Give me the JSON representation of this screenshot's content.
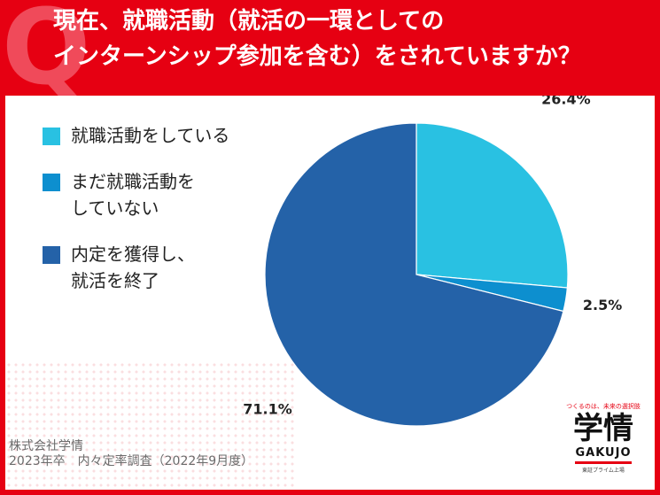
{
  "title": {
    "mark": "Q",
    "line1": "現在、就職活動（就活の一環としての",
    "line2": "インターンシップ参加を含む）をされていますか？"
  },
  "chart_data": {
    "type": "pie",
    "categories": [
      "就職活動をしている",
      "まだ就職活動をしていない",
      "内定を獲得し、就活を終了"
    ],
    "values": [
      26.4,
      2.5,
      71.1
    ],
    "value_labels": [
      "26.4%",
      "2.5%",
      "71.1%"
    ],
    "colors": [
      "#29c1e2",
      "#0d8fcf",
      "#2462a8"
    ],
    "legend": {
      "placement": "top-left",
      "items": [
        {
          "lines": [
            "就職活動をしている"
          ]
        },
        {
          "lines": [
            "まだ就職活動を",
            "していない"
          ]
        },
        {
          "lines": [
            "内定を獲得し、",
            "就活を終了"
          ]
        }
      ]
    },
    "start_angle": "12 o'clock",
    "direction": "clockwise"
  },
  "source": {
    "line1": "株式会社学情",
    "line2": "2023年卒　内々定率調査（2022年9月度）"
  },
  "logo": {
    "tagline": "つくるのは、未来の選択肢",
    "mark": "学情",
    "en": "GAKUJO",
    "sub": "東証プライム上場"
  }
}
